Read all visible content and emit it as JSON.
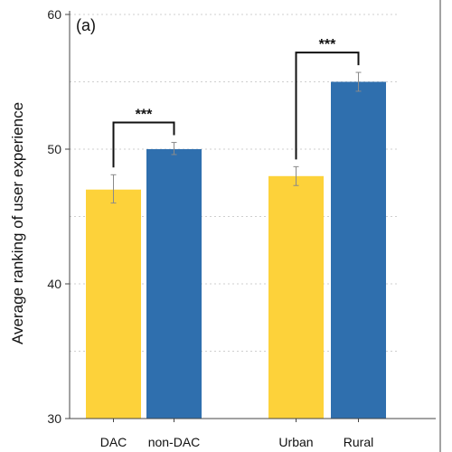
{
  "chart_data": {
    "type": "bar",
    "panel_label": "(a)",
    "ylabel": "Average ranking of user experience",
    "xlabel": "",
    "ylim": [
      30,
      60
    ],
    "yticks": [
      30,
      40,
      50,
      60
    ],
    "grid": true,
    "bars": [
      {
        "group": 0,
        "label": "DAC",
        "value": 47.0,
        "err_low": 46.0,
        "err_high": 48.1,
        "color": "#FDD23A"
      },
      {
        "group": 0,
        "label": "non-DAC",
        "value": 50.0,
        "err_low": 49.6,
        "err_high": 50.5,
        "color": "#2F6FAE"
      },
      {
        "group": 1,
        "label": "Urban",
        "value": 48.0,
        "err_low": 47.3,
        "err_high": 48.7,
        "color": "#FDD23A"
      },
      {
        "group": 1,
        "label": "Rural",
        "value": 55.0,
        "err_low": 54.3,
        "err_high": 55.7,
        "color": "#2F6FAE"
      }
    ],
    "significance": [
      {
        "between": [
          0,
          1
        ],
        "label": "***"
      },
      {
        "between": [
          2,
          3
        ],
        "label": "***"
      }
    ]
  }
}
